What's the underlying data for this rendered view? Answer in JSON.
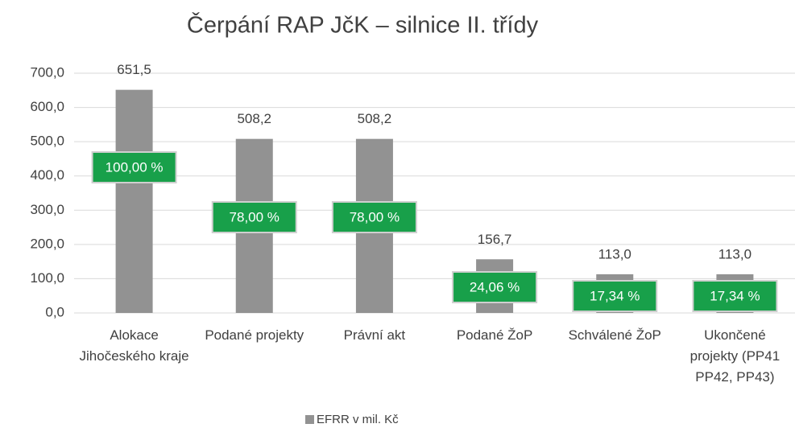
{
  "chart_data": {
    "type": "bar",
    "title": "Čerpání RAP JčK – silnice II. třídy",
    "categories": [
      "Alokace Jihočeského kraje",
      "Podané projekty",
      "Právní akt",
      "Podané ŽoP",
      "Schválené ŽoP",
      "Ukončené projekty (PP41 PP42, PP43)"
    ],
    "series": [
      {
        "name": "EFRR v mil. Kč",
        "color": "#929292",
        "values": [
          651.5,
          508.2,
          508.2,
          156.7,
          113.0,
          113.0
        ],
        "value_labels": [
          "651,5",
          "508,2",
          "508,2",
          "156,7",
          "113,0",
          "113,0"
        ]
      }
    ],
    "annotations": [
      "100,00 %",
      "78,00 %",
      "78,00 %",
      "24,06 %",
      "17,34 %",
      "17,34 %"
    ],
    "annotation_color": "#18a04a",
    "ylim": [
      0,
      700
    ],
    "yticks": [
      {
        "value": 0,
        "label": "0,0"
      },
      {
        "value": 100,
        "label": "100,0"
      },
      {
        "value": 200,
        "label": "200,0"
      },
      {
        "value": 300,
        "label": "300,0"
      },
      {
        "value": 400,
        "label": "400,0"
      },
      {
        "value": 500,
        "label": "500,0"
      },
      {
        "value": 600,
        "label": "600,0"
      },
      {
        "value": 700,
        "label": "700,0"
      }
    ],
    "grid": true,
    "legend": "bottom"
  }
}
